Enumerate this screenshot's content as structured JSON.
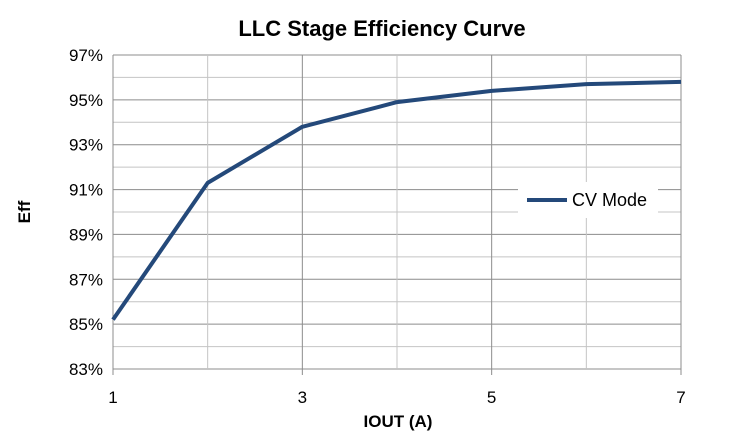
{
  "chart_data": {
    "type": "line",
    "title": "LLC Stage Efficiency Curve",
    "xlabel": "IOUT (A)",
    "ylabel": "Eff",
    "xlim": [
      1,
      7
    ],
    "ylim": [
      83,
      97
    ],
    "x_tick_labels": [
      "1",
      "3",
      "5",
      "7"
    ],
    "y_tick_labels": [
      "83%",
      "85%",
      "87%",
      "89%",
      "91%",
      "93%",
      "95%",
      "97%"
    ],
    "grid": true,
    "legend_position": "right",
    "series": [
      {
        "name": "CV Mode",
        "color": "#24497A",
        "x": [
          1,
          2,
          3,
          4,
          5,
          6,
          7
        ],
        "y": [
          85.2,
          91.3,
          93.8,
          94.9,
          95.4,
          95.7,
          95.8
        ]
      }
    ]
  }
}
